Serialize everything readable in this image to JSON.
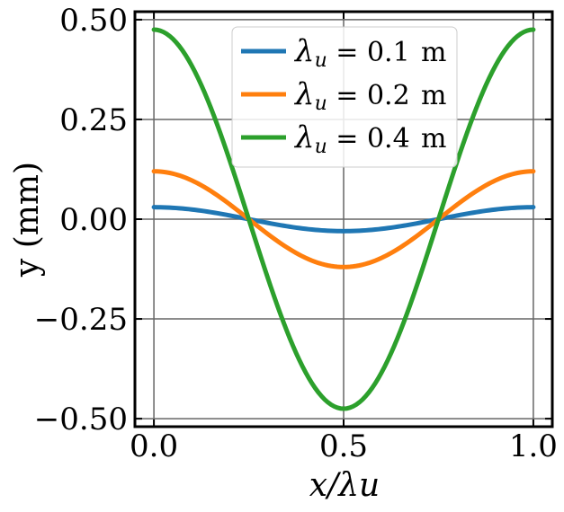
{
  "chart_data": {
    "type": "line",
    "xlabel": "x/λu",
    "ylabel": "y (mm)",
    "xlim": [
      -0.05,
      1.05
    ],
    "ylim": [
      -0.52,
      0.52
    ],
    "xticks": [
      0.0,
      0.5,
      1.0
    ],
    "xtick_labels": [
      "0.0",
      "0.5",
      "1.0"
    ],
    "yticks": [
      0.5,
      0.25,
      0.0,
      -0.25,
      -0.5
    ],
    "ytick_labels": [
      "0.50",
      "0.25",
      "0.00",
      "−0.25",
      "−0.50"
    ],
    "grid": true,
    "legend_position": "top-center",
    "series": [
      {
        "name": "λu = 0.1 m",
        "lambda_label": "λ",
        "sub": "u",
        "value_text": "= 0.1",
        "unit": "m",
        "color": "#1f77b4",
        "function": "A*cos(2*pi*x)",
        "amplitude": 0.03,
        "x": [
          0.0,
          0.125,
          0.25,
          0.375,
          0.5,
          0.625,
          0.75,
          0.875,
          1.0
        ],
        "y": [
          0.03,
          0.021,
          0.0,
          -0.021,
          -0.03,
          -0.021,
          0.0,
          0.021,
          0.03
        ]
      },
      {
        "name": "λu = 0.2 m",
        "lambda_label": "λ",
        "sub": "u",
        "value_text": "= 0.2",
        "unit": "m",
        "color": "#ff7f0e",
        "function": "A*cos(2*pi*x)",
        "amplitude": 0.12,
        "x": [
          0.0,
          0.125,
          0.25,
          0.375,
          0.5,
          0.625,
          0.75,
          0.875,
          1.0
        ],
        "y": [
          0.12,
          0.085,
          0.0,
          -0.085,
          -0.12,
          -0.085,
          0.0,
          0.085,
          0.12
        ]
      },
      {
        "name": "λu = 0.4 m",
        "lambda_label": "λ",
        "sub": "u",
        "value_text": "= 0.4",
        "unit": "m",
        "color": "#2ca02c",
        "function": "A*cos(2*pi*x)",
        "amplitude": 0.475,
        "x": [
          0.0,
          0.125,
          0.25,
          0.375,
          0.5,
          0.625,
          0.75,
          0.875,
          1.0
        ],
        "y": [
          0.475,
          0.336,
          0.0,
          -0.336,
          -0.475,
          -0.336,
          0.0,
          0.336,
          0.475
        ]
      }
    ]
  }
}
